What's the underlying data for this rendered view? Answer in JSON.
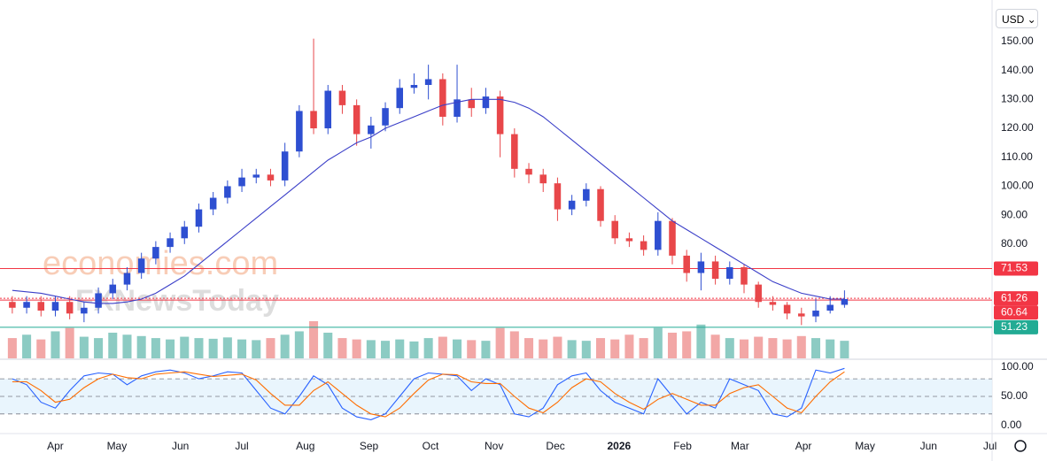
{
  "chart_data": {
    "type": "candlestick",
    "currency": "USD",
    "watermark": [
      "economies.com",
      "FXNewsToday"
    ],
    "x": [
      10,
      17,
      24,
      31,
      38,
      45,
      52,
      59,
      66,
      73,
      80,
      87,
      94,
      101,
      108,
      115,
      122,
      129,
      136,
      143,
      150,
      157,
      164,
      171,
      178,
      185,
      192,
      199,
      206,
      213,
      220,
      227,
      234,
      241,
      248,
      255,
      262,
      269,
      276,
      283,
      290,
      297,
      304,
      311,
      318,
      325,
      332,
      339,
      346,
      353,
      360,
      367,
      374,
      381,
      388,
      395,
      402,
      409,
      416
    ],
    "open": [
      60,
      58,
      60,
      57,
      60,
      56,
      58,
      63,
      66,
      70,
      75,
      79,
      82,
      86,
      92,
      96,
      100,
      103,
      104,
      102,
      112,
      126,
      120,
      133,
      128,
      118,
      121,
      127,
      134,
      135,
      137,
      124,
      130,
      127,
      131,
      118,
      106,
      104,
      101,
      92,
      95,
      99,
      88,
      82,
      81,
      78,
      88,
      76,
      70,
      74,
      68,
      72,
      66,
      60,
      59,
      56,
      55,
      57,
      59
    ],
    "high": [
      62,
      62,
      62,
      62,
      62,
      60,
      65,
      68,
      72,
      77,
      81,
      84,
      88,
      94,
      98,
      102,
      106,
      106,
      106,
      115,
      128,
      151,
      135,
      135,
      130,
      124,
      129,
      137,
      139,
      142,
      139,
      142,
      134,
      134,
      133,
      120,
      108,
      106,
      103,
      97,
      101,
      100,
      90,
      84,
      83,
      91,
      89,
      78,
      77,
      76,
      74,
      73,
      67,
      62,
      60,
      58,
      61,
      62,
      64
    ],
    "low": [
      56,
      56,
      55,
      55,
      54,
      53,
      56,
      61,
      64,
      68,
      73,
      77,
      80,
      84,
      90,
      94,
      98,
      101,
      100,
      100,
      110,
      118,
      118,
      125,
      114,
      113,
      119,
      125,
      132,
      130,
      121,
      122,
      124,
      125,
      110,
      103,
      101,
      98,
      88,
      90,
      93,
      86,
      80,
      79,
      76,
      76,
      73,
      67,
      64,
      66,
      66,
      63,
      58,
      57,
      54,
      52,
      53,
      56,
      58
    ],
    "close": [
      58,
      60,
      57,
      60,
      56,
      58,
      63,
      66,
      70,
      75,
      79,
      82,
      86,
      92,
      96,
      100,
      103,
      104,
      102,
      112,
      126,
      120,
      133,
      128,
      118,
      121,
      127,
      134,
      135,
      137,
      124,
      130,
      127,
      131,
      118,
      106,
      104,
      101,
      92,
      95,
      99,
      88,
      82,
      81,
      78,
      88,
      76,
      70,
      74,
      68,
      72,
      66,
      60,
      59,
      56,
      55,
      57,
      59,
      61
    ],
    "up_color": "#2e4fd1",
    "down_color": "#e8474a",
    "ma": {
      "color": "#3b3fc8",
      "values": [
        64,
        63.5,
        63,
        62,
        61,
        60,
        59.5,
        59.5,
        60,
        61,
        63,
        66,
        69,
        73,
        77,
        81,
        85,
        89,
        93,
        97,
        101,
        105,
        109,
        112,
        115,
        117,
        120,
        122,
        124,
        126,
        128,
        129,
        130,
        130,
        130,
        129,
        127,
        124,
        120,
        116,
        112,
        108,
        104,
        100,
        96,
        92,
        88,
        85,
        82,
        79,
        76,
        73,
        70,
        67,
        65,
        63,
        62,
        61,
        61
      ]
    },
    "volume": {
      "up_color": "#8ccbc3",
      "down_color": "#f2a7a6",
      "values": [
        30,
        35,
        28,
        40,
        45,
        32,
        30,
        38,
        35,
        33,
        30,
        28,
        32,
        30,
        29,
        31,
        28,
        27,
        30,
        35,
        40,
        55,
        38,
        30,
        28,
        27,
        26,
        28,
        25,
        30,
        32,
        28,
        27,
        26,
        45,
        40,
        30,
        28,
        32,
        27,
        26,
        30,
        28,
        35,
        30,
        45,
        38,
        40,
        50,
        35,
        30,
        28,
        32,
        30,
        28,
        33,
        30,
        28,
        26
      ]
    },
    "xlim": [
      4,
      488
    ],
    "xticks": [
      {
        "value": 31,
        "label": "Apr"
      },
      {
        "value": 61,
        "label": "May"
      },
      {
        "value": 92,
        "label": "Jun"
      },
      {
        "value": 122,
        "label": "Jul"
      },
      {
        "value": 153,
        "label": "Aug"
      },
      {
        "value": 184,
        "label": "Sep"
      },
      {
        "value": 214,
        "label": "Oct"
      },
      {
        "value": 245,
        "label": "Nov"
      },
      {
        "value": 275,
        "label": "Dec"
      },
      {
        "value": 306,
        "label": "2026"
      },
      {
        "value": 337,
        "label": "Feb"
      },
      {
        "value": 365,
        "label": "Mar"
      },
      {
        "value": 396,
        "label": "Apr"
      },
      {
        "value": 426,
        "label": "May"
      },
      {
        "value": 457,
        "label": "Jun"
      },
      {
        "value": 487,
        "label": "Jul"
      }
    ],
    "ylim": [
      40.5,
      161.3
    ],
    "yticks": [
      {
        "value": 80,
        "label": "80.00"
      },
      {
        "value": 90,
        "label": "90.00"
      },
      {
        "value": 100,
        "label": "100.00"
      },
      {
        "value": 110,
        "label": "110.00"
      },
      {
        "value": 120,
        "label": "120.00"
      },
      {
        "value": 130,
        "label": "130.00"
      },
      {
        "value": 140,
        "label": "140.00"
      },
      {
        "value": 150,
        "label": "150.00"
      }
    ],
    "levels": [
      {
        "value": 71.53,
        "color": "#f23645",
        "dash": false
      },
      {
        "value": 61.26,
        "color": "#f23645",
        "dash": true
      },
      {
        "value": 60.64,
        "color": "#f23645",
        "dash": false
      },
      {
        "value": 51.23,
        "color": "#22ab94",
        "dash": false
      }
    ],
    "stochastic": {
      "ylim": [
        -13.6,
        112
      ],
      "yticks": [
        {
          "value": 0,
          "label": "0.00"
        },
        {
          "value": 50,
          "label": "50.00"
        },
        {
          "value": 100,
          "label": "100.00"
        }
      ],
      "band": [
        20,
        80
      ],
      "guides": [
        80,
        50,
        20
      ],
      "series": [
        {
          "color": "#2962ff",
          "values": [
            80,
            70,
            40,
            30,
            60,
            85,
            90,
            88,
            70,
            85,
            92,
            95,
            90,
            80,
            85,
            92,
            90,
            60,
            30,
            20,
            50,
            85,
            70,
            30,
            15,
            10,
            20,
            50,
            80,
            90,
            88,
            85,
            60,
            80,
            70,
            20,
            15,
            30,
            70,
            85,
            90,
            60,
            40,
            30,
            20,
            80,
            50,
            20,
            40,
            30,
            80,
            70,
            60,
            20,
            15,
            30,
            95,
            90,
            98
          ]
        },
        {
          "color": "#ff6d00",
          "values": [
            75,
            75,
            60,
            40,
            45,
            65,
            80,
            88,
            82,
            80,
            88,
            90,
            92,
            88,
            84,
            86,
            88,
            78,
            55,
            35,
            35,
            60,
            75,
            55,
            35,
            20,
            15,
            30,
            55,
            78,
            88,
            87,
            75,
            72,
            72,
            50,
            30,
            22,
            40,
            65,
            80,
            75,
            55,
            40,
            28,
            45,
            55,
            45,
            35,
            35,
            55,
            65,
            70,
            50,
            30,
            22,
            50,
            75,
            92
          ]
        }
      ]
    }
  }
}
